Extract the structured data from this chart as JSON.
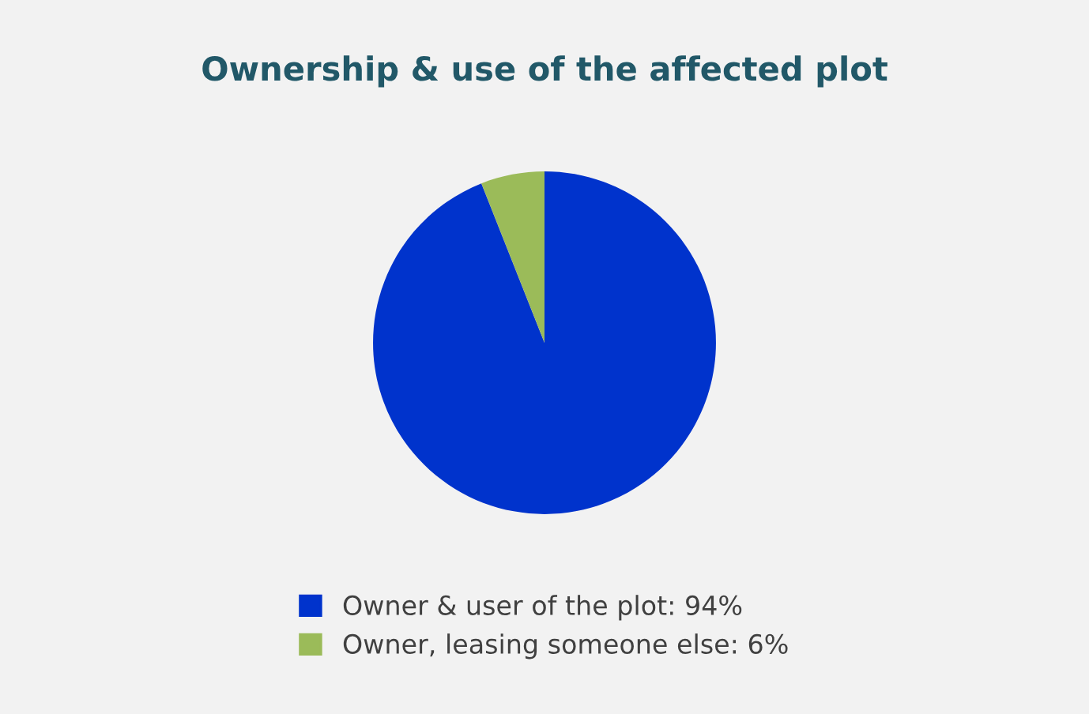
{
  "chart_data": {
    "type": "pie",
    "title": "Ownership & use of the affected plot",
    "categories": [
      "Owner & user of the plot: 94%",
      "Owner, leasing someone else: 6%"
    ],
    "values": [
      94,
      6
    ],
    "colors": [
      "#0033cc",
      "#9bbb59"
    ],
    "legend": "bottom"
  }
}
